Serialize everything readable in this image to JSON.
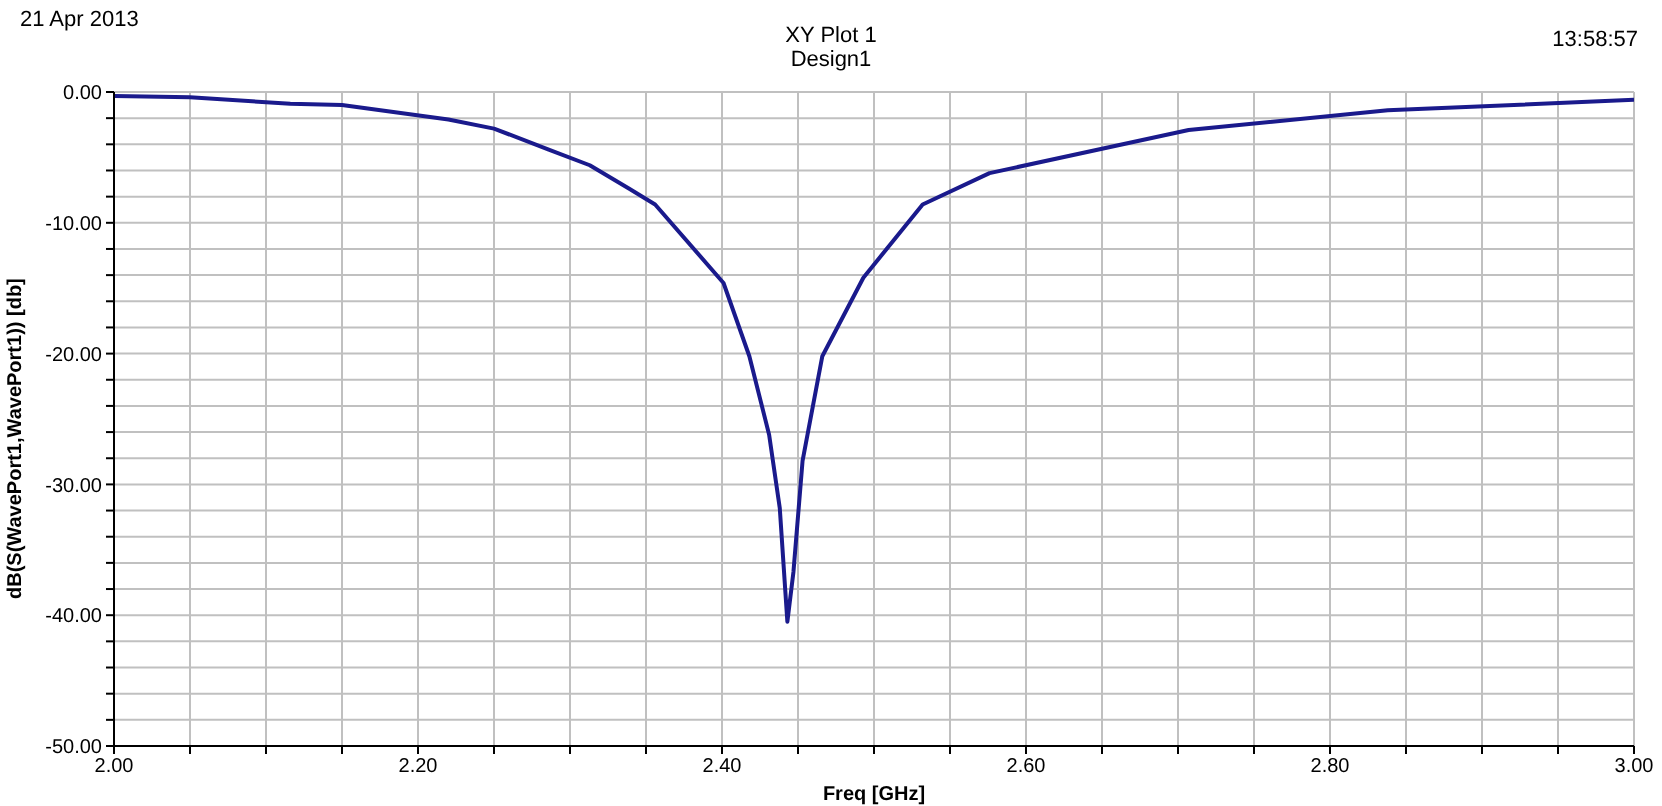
{
  "chart_data": {
    "type": "line",
    "title": "XY Plot 1",
    "subtitle": "Design1",
    "xlabel": "Freq [GHz]",
    "ylabel": "dB(S(WavePort1,WavePort1)) [db]",
    "annotations": [
      "21 Apr 2013",
      "13:58:57"
    ],
    "x": [
      2.0,
      2.05,
      2.116,
      2.15,
      2.22,
      2.25,
      2.286,
      2.313,
      2.339,
      2.356,
      2.401,
      2.418,
      2.431,
      2.438,
      2.443,
      2.447,
      2.453,
      2.466,
      2.493,
      2.532,
      2.576,
      2.707,
      2.838,
      3.0
    ],
    "series": [
      {
        "color": "#1a1a8c",
        "values": [
          -0.3,
          -0.4,
          -0.9,
          -1.0,
          -2.1,
          -2.8,
          -4.4,
          -5.6,
          -7.4,
          -8.6,
          -14.6,
          -20.2,
          -26.2,
          -31.8,
          -40.5,
          -36.7,
          -28.2,
          -20.2,
          -14.2,
          -8.6,
          -6.2,
          -2.9,
          -1.4,
          -0.6
        ]
      }
    ],
    "xlim": [
      2.0,
      3.0
    ],
    "xticks": [
      {
        "value": 2.0,
        "label": "2.00"
      },
      {
        "value": 2.05,
        "label": null
      },
      {
        "value": 2.1,
        "label": null
      },
      {
        "value": 2.15,
        "label": null
      },
      {
        "value": 2.2,
        "label": "2.20"
      },
      {
        "value": 2.25,
        "label": null
      },
      {
        "value": 2.3,
        "label": null
      },
      {
        "value": 2.35,
        "label": null
      },
      {
        "value": 2.4,
        "label": "2.40"
      },
      {
        "value": 2.45,
        "label": null
      },
      {
        "value": 2.5,
        "label": null
      },
      {
        "value": 2.55,
        "label": null
      },
      {
        "value": 2.6,
        "label": "2.60"
      },
      {
        "value": 2.65,
        "label": null
      },
      {
        "value": 2.7,
        "label": null
      },
      {
        "value": 2.75,
        "label": null
      },
      {
        "value": 2.8,
        "label": "2.80"
      },
      {
        "value": 2.85,
        "label": null
      },
      {
        "value": 2.9,
        "label": null
      },
      {
        "value": 2.95,
        "label": null
      },
      {
        "value": 3.0,
        "label": "3.00"
      }
    ],
    "ylim": [
      -50,
      0
    ],
    "yticks": [
      {
        "value": -50,
        "label": "-50.00"
      },
      {
        "value": -48,
        "label": null
      },
      {
        "value": -46,
        "label": null
      },
      {
        "value": -44,
        "label": null
      },
      {
        "value": -42,
        "label": null
      },
      {
        "value": -40,
        "label": "-40.00"
      },
      {
        "value": -38,
        "label": null
      },
      {
        "value": -36,
        "label": null
      },
      {
        "value": -34,
        "label": null
      },
      {
        "value": -32,
        "label": null
      },
      {
        "value": -30,
        "label": "-30.00"
      },
      {
        "value": -28,
        "label": null
      },
      {
        "value": -26,
        "label": null
      },
      {
        "value": -24,
        "label": null
      },
      {
        "value": -22,
        "label": null
      },
      {
        "value": -20,
        "label": "-20.00"
      },
      {
        "value": -18,
        "label": null
      },
      {
        "value": -16,
        "label": null
      },
      {
        "value": -14,
        "label": null
      },
      {
        "value": -12,
        "label": null
      },
      {
        "value": -10,
        "label": "-10.00"
      },
      {
        "value": -8,
        "label": null
      },
      {
        "value": -6,
        "label": null
      },
      {
        "value": -4,
        "label": null
      },
      {
        "value": -2,
        "label": null
      },
      {
        "value": 0,
        "label": "0.00"
      }
    ],
    "grid": true,
    "marker": "none",
    "line_style": "solid"
  }
}
